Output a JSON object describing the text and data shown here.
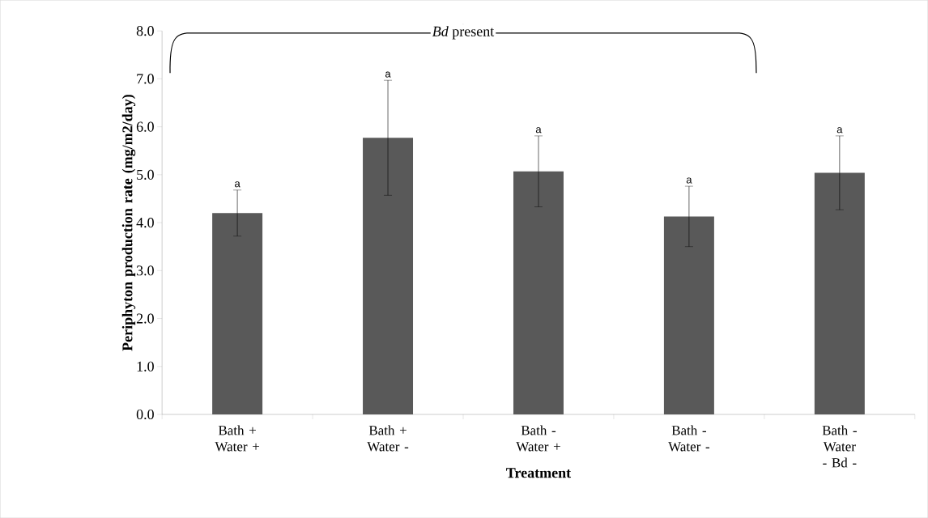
{
  "chart_data": {
    "type": "bar",
    "xlabel": "Treatment",
    "ylabel": "Periphyton production rate (mg/m2/day)",
    "categories": [
      "Bath + Water +",
      "Bath + Water -",
      "Bath - Water +",
      "Bath - Water -",
      "Bath - Water - Bd -"
    ],
    "values": [
      4.2,
      5.77,
      5.07,
      4.13,
      5.04
    ],
    "errors": [
      0.48,
      1.2,
      0.74,
      0.63,
      0.77
    ],
    "color": "#595959",
    "ylim": [
      0,
      8
    ],
    "yticks": [
      {
        "value": 0,
        "label": "0.0"
      },
      {
        "value": 1,
        "label": "1.0"
      },
      {
        "value": 2,
        "label": "2.0"
      },
      {
        "value": 3,
        "label": "3.0"
      },
      {
        "value": 4,
        "label": "4.0"
      },
      {
        "value": 5,
        "label": "5.0"
      },
      {
        "value": 6,
        "label": "6.0"
      },
      {
        "value": 7,
        "label": "7.0"
      },
      {
        "value": 8,
        "label": "8.0"
      }
    ],
    "annotations": [
      "a",
      "a",
      "a",
      "a",
      "a",
      "*Bd* present"
    ],
    "grid": false
  }
}
